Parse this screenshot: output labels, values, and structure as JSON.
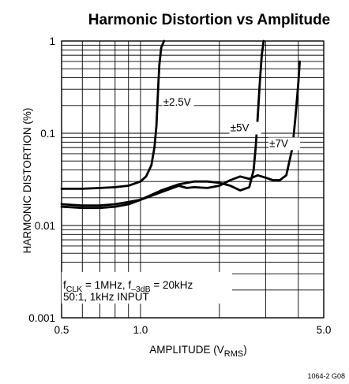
{
  "chart_data": {
    "type": "line",
    "title": "Harmonic Distortion vs Amplitude",
    "xlabel": "AMPLITUDE (V",
    "xlabel_sub": "RMS",
    "xlabel_end": ")",
    "ylabel": "HARMONIC DISTORTION (%)",
    "x_scale": "log",
    "y_scale": "log",
    "xlim": [
      0.5,
      5.0
    ],
    "ylim": [
      0.001,
      1
    ],
    "x_ticks": [
      {
        "value": 0.5,
        "label": "0.5"
      },
      {
        "value": 1.0,
        "label": "1.0"
      },
      {
        "value": 5.0,
        "label": "5.0"
      }
    ],
    "y_ticks": [
      {
        "value": 1,
        "label": "1"
      },
      {
        "value": 0.1,
        "label": "0.1"
      },
      {
        "value": 0.01,
        "label": "0.01"
      },
      {
        "value": 0.001,
        "label": "0.001"
      }
    ],
    "grid": true,
    "series": [
      {
        "name": "±2.5V",
        "x": [
          0.5,
          0.6,
          0.7,
          0.8,
          0.9,
          1.0,
          1.05,
          1.1,
          1.13,
          1.15,
          1.16,
          1.17,
          1.18,
          1.2,
          1.23
        ],
        "y": [
          0.025,
          0.025,
          0.0255,
          0.026,
          0.027,
          0.03,
          0.034,
          0.045,
          0.07,
          0.12,
          0.2,
          0.35,
          0.55,
          0.85,
          1.0
        ]
      },
      {
        "name": "±5V",
        "x": [
          0.5,
          0.6,
          0.7,
          0.8,
          0.9,
          1.0,
          1.2,
          1.4,
          1.6,
          1.8,
          2.0,
          2.2,
          2.4,
          2.6,
          2.7,
          2.75,
          2.8,
          2.85,
          2.9,
          2.95
        ],
        "y": [
          0.016,
          0.0155,
          0.0155,
          0.016,
          0.017,
          0.019,
          0.024,
          0.028,
          0.03,
          0.03,
          0.029,
          0.027,
          0.024,
          0.026,
          0.04,
          0.07,
          0.15,
          0.35,
          0.7,
          1.0
        ]
      },
      {
        "name": "±7V",
        "x": [
          0.5,
          0.6,
          0.7,
          0.8,
          0.9,
          1.0,
          1.2,
          1.4,
          1.5,
          1.6,
          1.8,
          2.0,
          2.2,
          2.4,
          2.6,
          2.8,
          3.0,
          3.2,
          3.4,
          3.6,
          3.8,
          3.9,
          4.0,
          4.05
        ],
        "y": [
          0.017,
          0.0165,
          0.0165,
          0.017,
          0.018,
          0.019,
          0.023,
          0.027,
          0.0255,
          0.026,
          0.0255,
          0.027,
          0.031,
          0.034,
          0.032,
          0.035,
          0.033,
          0.031,
          0.031,
          0.035,
          0.07,
          0.15,
          0.35,
          0.6
        ]
      }
    ],
    "annotations": {
      "line1_pre": "f",
      "line1_sub": "CLK",
      "line1_mid": " = 1MHz, f",
      "line1_sub2": "–3dB",
      "line1_end": " = 20kHz",
      "line2": "50:1, 1kHz INPUT"
    },
    "figure_id": "1064-2 G08"
  }
}
